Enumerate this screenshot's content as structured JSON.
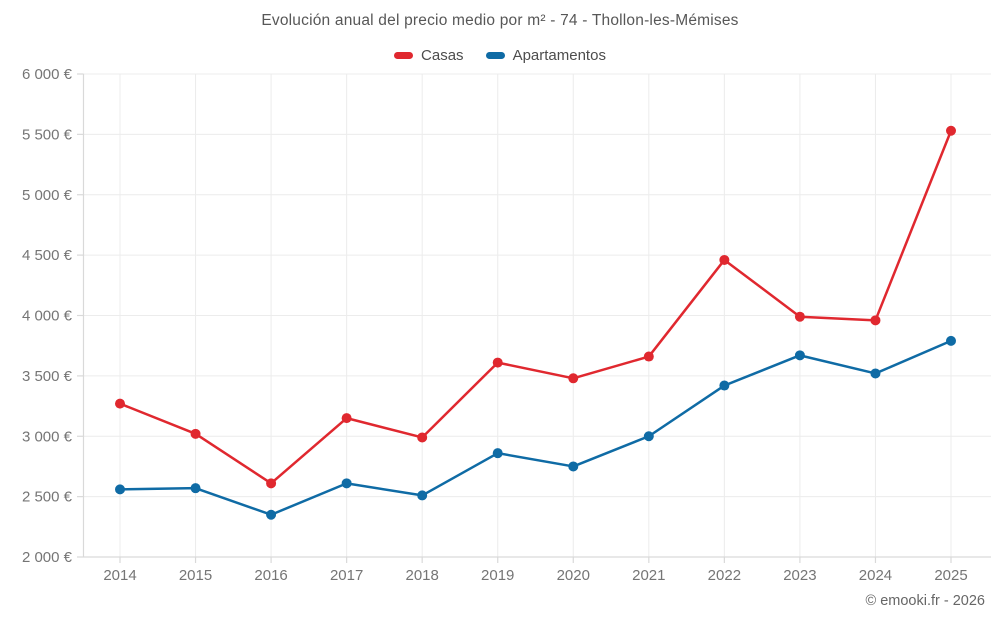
{
  "page": {
    "title": "Evolución anual del precio medio por m² - 74 - Thollon-les-Mémises",
    "footer": "© emooki.fr - 2026"
  },
  "chart_data": {
    "type": "line",
    "title": "Evolución anual del precio medio por m² - 74 - Thollon-les-Mémises",
    "categories": [
      "2014",
      "2015",
      "2016",
      "2017",
      "2018",
      "2019",
      "2020",
      "2021",
      "2022",
      "2023",
      "2024",
      "2025"
    ],
    "series": [
      {
        "name": "Casas",
        "color": "#e0282f",
        "values": [
          3270,
          3020,
          2610,
          3150,
          2990,
          3610,
          3480,
          3660,
          4460,
          3990,
          3960,
          5530
        ]
      },
      {
        "name": "Apartamentos",
        "color": "#0f6ba5",
        "values": [
          2560,
          2570,
          2350,
          2610,
          2510,
          2860,
          2750,
          3000,
          3420,
          3670,
          3520,
          3790
        ]
      }
    ],
    "ylim": [
      2000,
      6000
    ],
    "ytick_step": 500,
    "ytick_labels": [
      "2 000 €",
      "2 500 €",
      "3 000 €",
      "3 500 €",
      "4 000 €",
      "4 500 €",
      "5 000 €",
      "5 500 €",
      "6 000 €"
    ],
    "xlabel": "",
    "ylabel": "",
    "grid": true,
    "legend_position": "top",
    "unit": "€"
  },
  "colors": {
    "grid": "#ececec",
    "axis": "#d9d9d9",
    "tick_label": "#757575",
    "title_text": "#575757",
    "legend_text": "#4d4d4d",
    "footer_text": "#666666",
    "background": "#ffffff"
  }
}
